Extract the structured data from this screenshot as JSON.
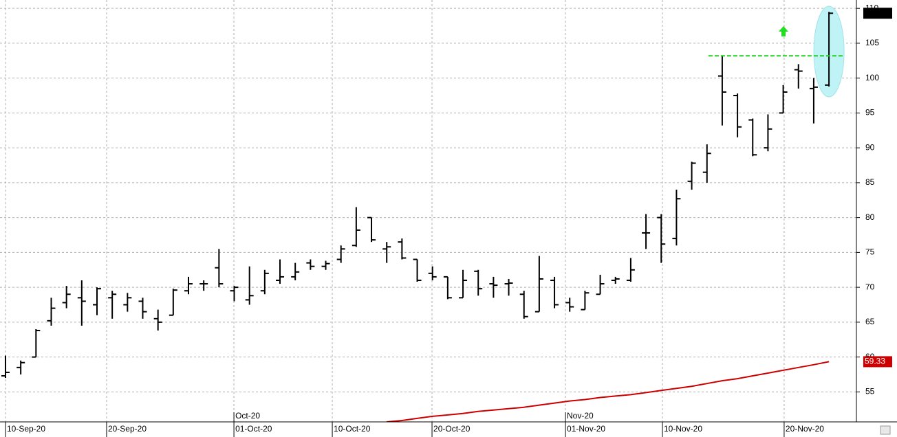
{
  "chart_data": {
    "type": "ohlc",
    "color": "#000000",
    "open": [
      57.3,
      58.5,
      60,
      65.2,
      67.8,
      68.5,
      67.5,
      68.5,
      67.5,
      68,
      65.5,
      66,
      69.5,
      70.5,
      72.8,
      69.5,
      68.2,
      69.5,
      71,
      71.5,
      73.5,
      73,
      74,
      76,
      80,
      75.5,
      76.5,
      74,
      72,
      71.5,
      68.5,
      72.3,
      70.5,
      70.5,
      69,
      66.5,
      71,
      67.8,
      66.8,
      69,
      71,
      71,
      77.8,
      80,
      77,
      85.2,
      86.5,
      100.3,
      97.5,
      94,
      90,
      95,
      101.2,
      98.5,
      99
    ],
    "high": [
      60.2,
      59.5,
      64,
      68.5,
      70.2,
      71,
      70,
      69.5,
      69.2,
      68.5,
      66.8,
      69.8,
      71.5,
      71,
      75.5,
      70.2,
      73,
      72.5,
      74,
      73.5,
      74,
      73.8,
      76,
      81.5,
      80,
      76.5,
      77,
      74,
      73,
      71.5,
      72.5,
      72.5,
      71.5,
      71.2,
      69.5,
      74.5,
      71.5,
      68.5,
      69.5,
      71.8,
      71.5,
      74.2,
      80.5,
      80.5,
      84,
      88,
      90.5,
      103.2,
      97.8,
      94.2,
      94.8,
      99,
      102,
      100,
      109.5
    ],
    "low": [
      57,
      57.5,
      60,
      64.5,
      67,
      64.5,
      66,
      65.5,
      66.5,
      65.5,
      63.8,
      66,
      69,
      69.5,
      70,
      68,
      67.5,
      69,
      70.5,
      71,
      72.5,
      72.5,
      73.5,
      75.8,
      76.5,
      73.5,
      74,
      70.8,
      71,
      68.3,
      68.5,
      68.8,
      68.5,
      68.8,
      65.5,
      66.5,
      67,
      66.5,
      66.8,
      69,
      70.5,
      70.8,
      75.5,
      73.5,
      76,
      84,
      85,
      93.2,
      91.5,
      88.8,
      89.5,
      95,
      98.5,
      93.5,
      98.8
    ],
    "close": [
      57.8,
      59.2,
      63.8,
      67,
      69,
      68,
      69.8,
      69,
      68.5,
      66.5,
      65,
      69.6,
      70.5,
      70.5,
      70.5,
      70,
      68.8,
      72,
      71.5,
      72.2,
      73,
      73.4,
      75.5,
      78.2,
      76.8,
      75.8,
      74.2,
      71,
      71.5,
      68.5,
      71,
      69.8,
      70.3,
      70.6,
      65.8,
      71.2,
      67.5,
      67.2,
      69.2,
      70.5,
      71.2,
      72.5,
      77.8,
      76.2,
      82.7,
      87.8,
      89.2,
      98,
      93,
      89,
      92.7,
      98,
      101,
      98.7,
      109.3
    ],
    "moving_average": {
      "color": "#cc0000",
      "last_label": "59.33",
      "values": [
        null,
        null,
        null,
        null,
        null,
        null,
        null,
        null,
        null,
        null,
        null,
        null,
        null,
        null,
        null,
        null,
        null,
        null,
        null,
        null,
        null,
        null,
        null,
        null,
        null,
        50.7,
        50.9,
        51.2,
        51.5,
        51.7,
        51.9,
        52.2,
        52.4,
        52.6,
        52.8,
        53.1,
        53.4,
        53.7,
        53.9,
        54.2,
        54.4,
        54.6,
        54.9,
        55.2,
        55.5,
        55.8,
        56.2,
        56.6,
        56.9,
        57.3,
        57.7,
        58.1,
        58.5,
        58.9,
        59.33
      ]
    },
    "resistance": {
      "value": 103.2,
      "color": "#22cc22"
    },
    "xlim": [
      -0.36,
      55.8
    ],
    "xticks": [
      {
        "value": 0,
        "label": "10-Sep-20"
      },
      {
        "value": 6.63,
        "label": "20-Sep-20"
      },
      {
        "value": 14.98,
        "label": "01-Oct-20"
      },
      {
        "value": 21.43,
        "label": "10-Oct-20"
      },
      {
        "value": 27.97,
        "label": "20-Oct-20"
      },
      {
        "value": 36.72,
        "label": "01-Nov-20"
      },
      {
        "value": 43.08,
        "label": "10-Nov-20"
      },
      {
        "value": 51.06,
        "label": "20-Nov-20"
      }
    ],
    "month_ticks": [
      {
        "value": 14.98,
        "label": "Oct-20"
      },
      {
        "value": 36.72,
        "label": "Nov-20"
      }
    ],
    "ylim": [
      50.7,
      111.2
    ],
    "yticks": [
      55,
      60,
      65,
      70,
      75,
      80,
      85,
      90,
      95,
      100,
      105,
      110
    ],
    "grid": true
  }
}
